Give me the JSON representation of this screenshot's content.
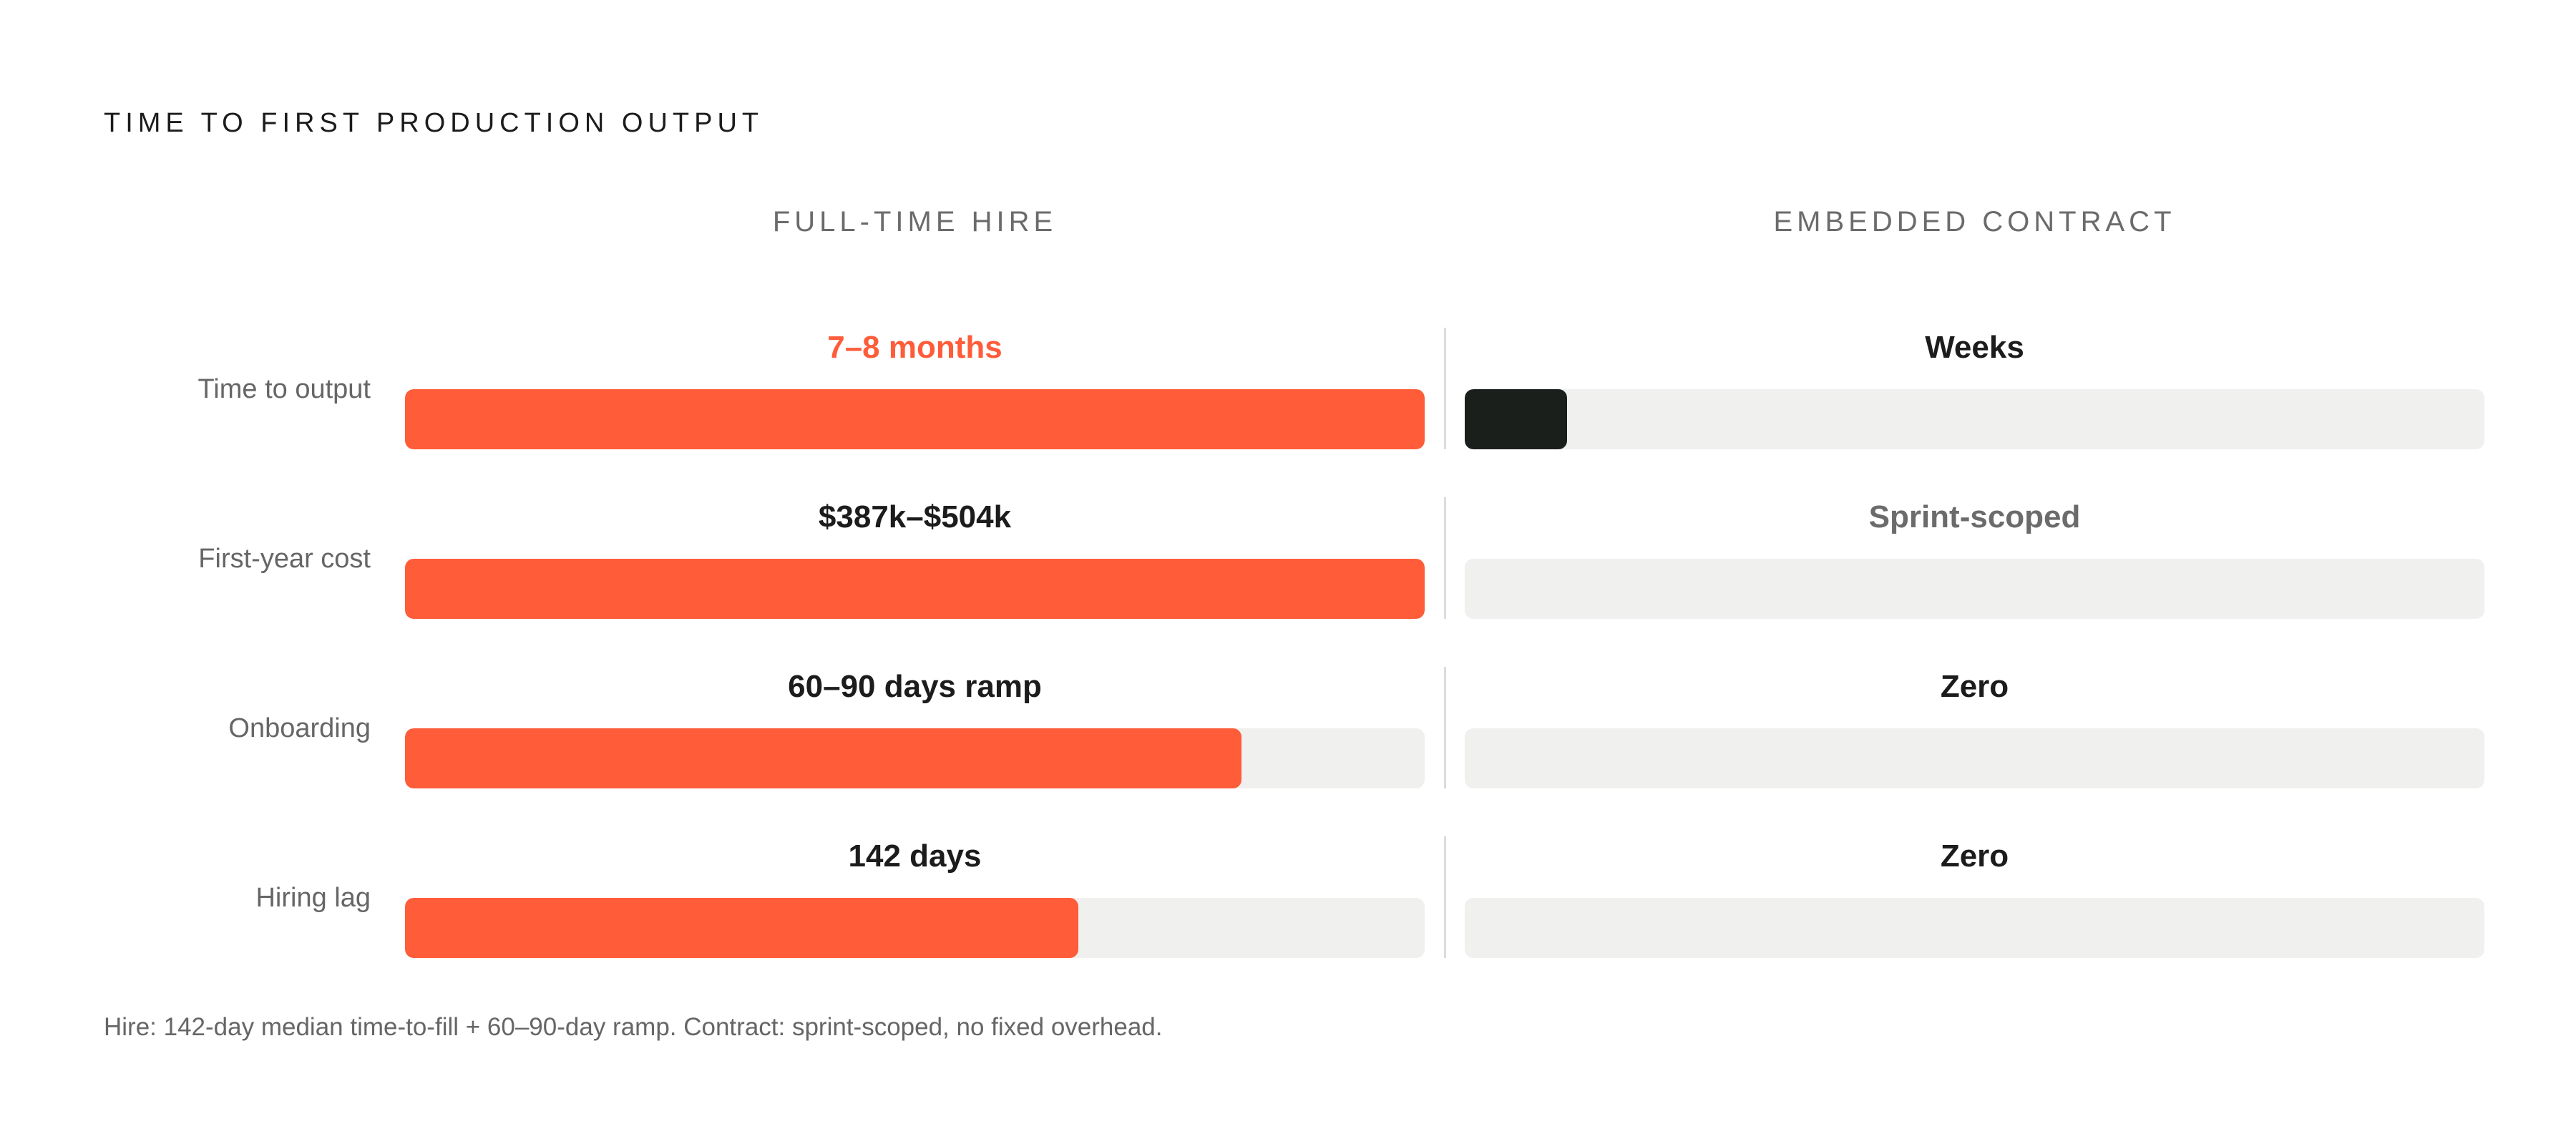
{
  "title": "TIME TO FIRST PRODUCTION OUTPUT",
  "columns": {
    "hire": "FULL-TIME HIRE",
    "contract": "EMBEDDED CONTRACT"
  },
  "colors": {
    "hire_fill": "#ff5c3a",
    "contract_fill": "#1b1f1b",
    "track": "#f0f0ee",
    "accent_text": "#ff5c3a",
    "muted_text": "#6b6b6b"
  },
  "chart_data": {
    "type": "bar",
    "title": "TIME TO FIRST PRODUCTION OUTPUT",
    "series": [
      {
        "name": "FULL-TIME HIRE",
        "values": [
          1.0,
          1.0,
          0.82,
          0.66
        ]
      },
      {
        "name": "EMBEDDED CONTRACT",
        "values": [
          0.1,
          0,
          0,
          0
        ]
      }
    ],
    "rows": [
      {
        "label": "Time to output",
        "hire": {
          "value_text": "7–8 months",
          "fill": 1.0,
          "style": "accent"
        },
        "contract": {
          "value_text": "Weeks",
          "fill": 0.1,
          "style": "normal"
        }
      },
      {
        "label": "First-year cost",
        "hire": {
          "value_text": "$387k–$504k",
          "fill": 1.0,
          "style": "normal"
        },
        "contract": {
          "value_text": "Sprint-scoped",
          "fill": 0,
          "style": "muted"
        }
      },
      {
        "label": "Onboarding",
        "hire": {
          "value_text": "60–90 days ramp",
          "fill": 0.82,
          "style": "normal"
        },
        "contract": {
          "value_text": "Zero",
          "fill": 0,
          "style": "normal"
        }
      },
      {
        "label": "Hiring lag",
        "hire": {
          "value_text": "142 days",
          "fill": 0.66,
          "style": "normal"
        },
        "contract": {
          "value_text": "Zero",
          "fill": 0,
          "style": "normal"
        }
      }
    ]
  },
  "footnote": "Hire: 142-day median time-to-fill + 60–90-day ramp. Contract: sprint-scoped, no fixed overhead."
}
